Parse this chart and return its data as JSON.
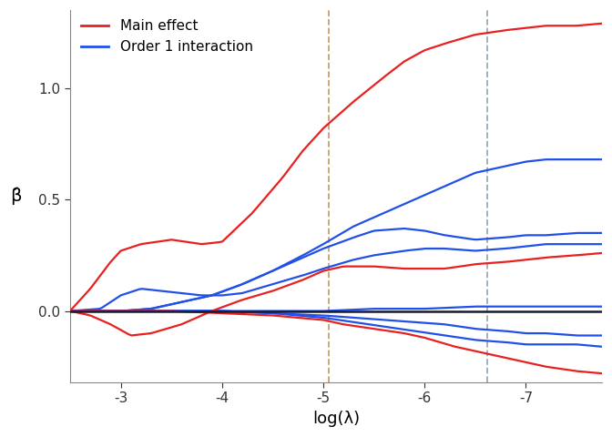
{
  "title": "",
  "xlabel": "log(λ)",
  "ylabel": "β̂",
  "xlim": [
    -2.5,
    -7.75
  ],
  "ylim": [
    -0.32,
    1.35
  ],
  "xticks": [
    -3,
    -4,
    -5,
    -6,
    -7
  ],
  "ytick_vals": [
    0.0,
    0.5,
    1.0
  ],
  "ytick_labels": [
    "0.0",
    "0.5",
    "1.0"
  ],
  "vline1_x": -5.05,
  "vline1_color": "#c8a070",
  "vline2_x": -6.62,
  "vline2_color": "#9aabb8",
  "legend_labels": [
    "Main effect",
    "Order 1 interaction"
  ],
  "legend_colors": [
    "#e82020",
    "#2050e8"
  ],
  "background_color": "#ffffff",
  "red_color": "#e82020",
  "blue_color": "#2050e8",
  "hline_color": "#1a1a2e",
  "spine_color": "#888888"
}
